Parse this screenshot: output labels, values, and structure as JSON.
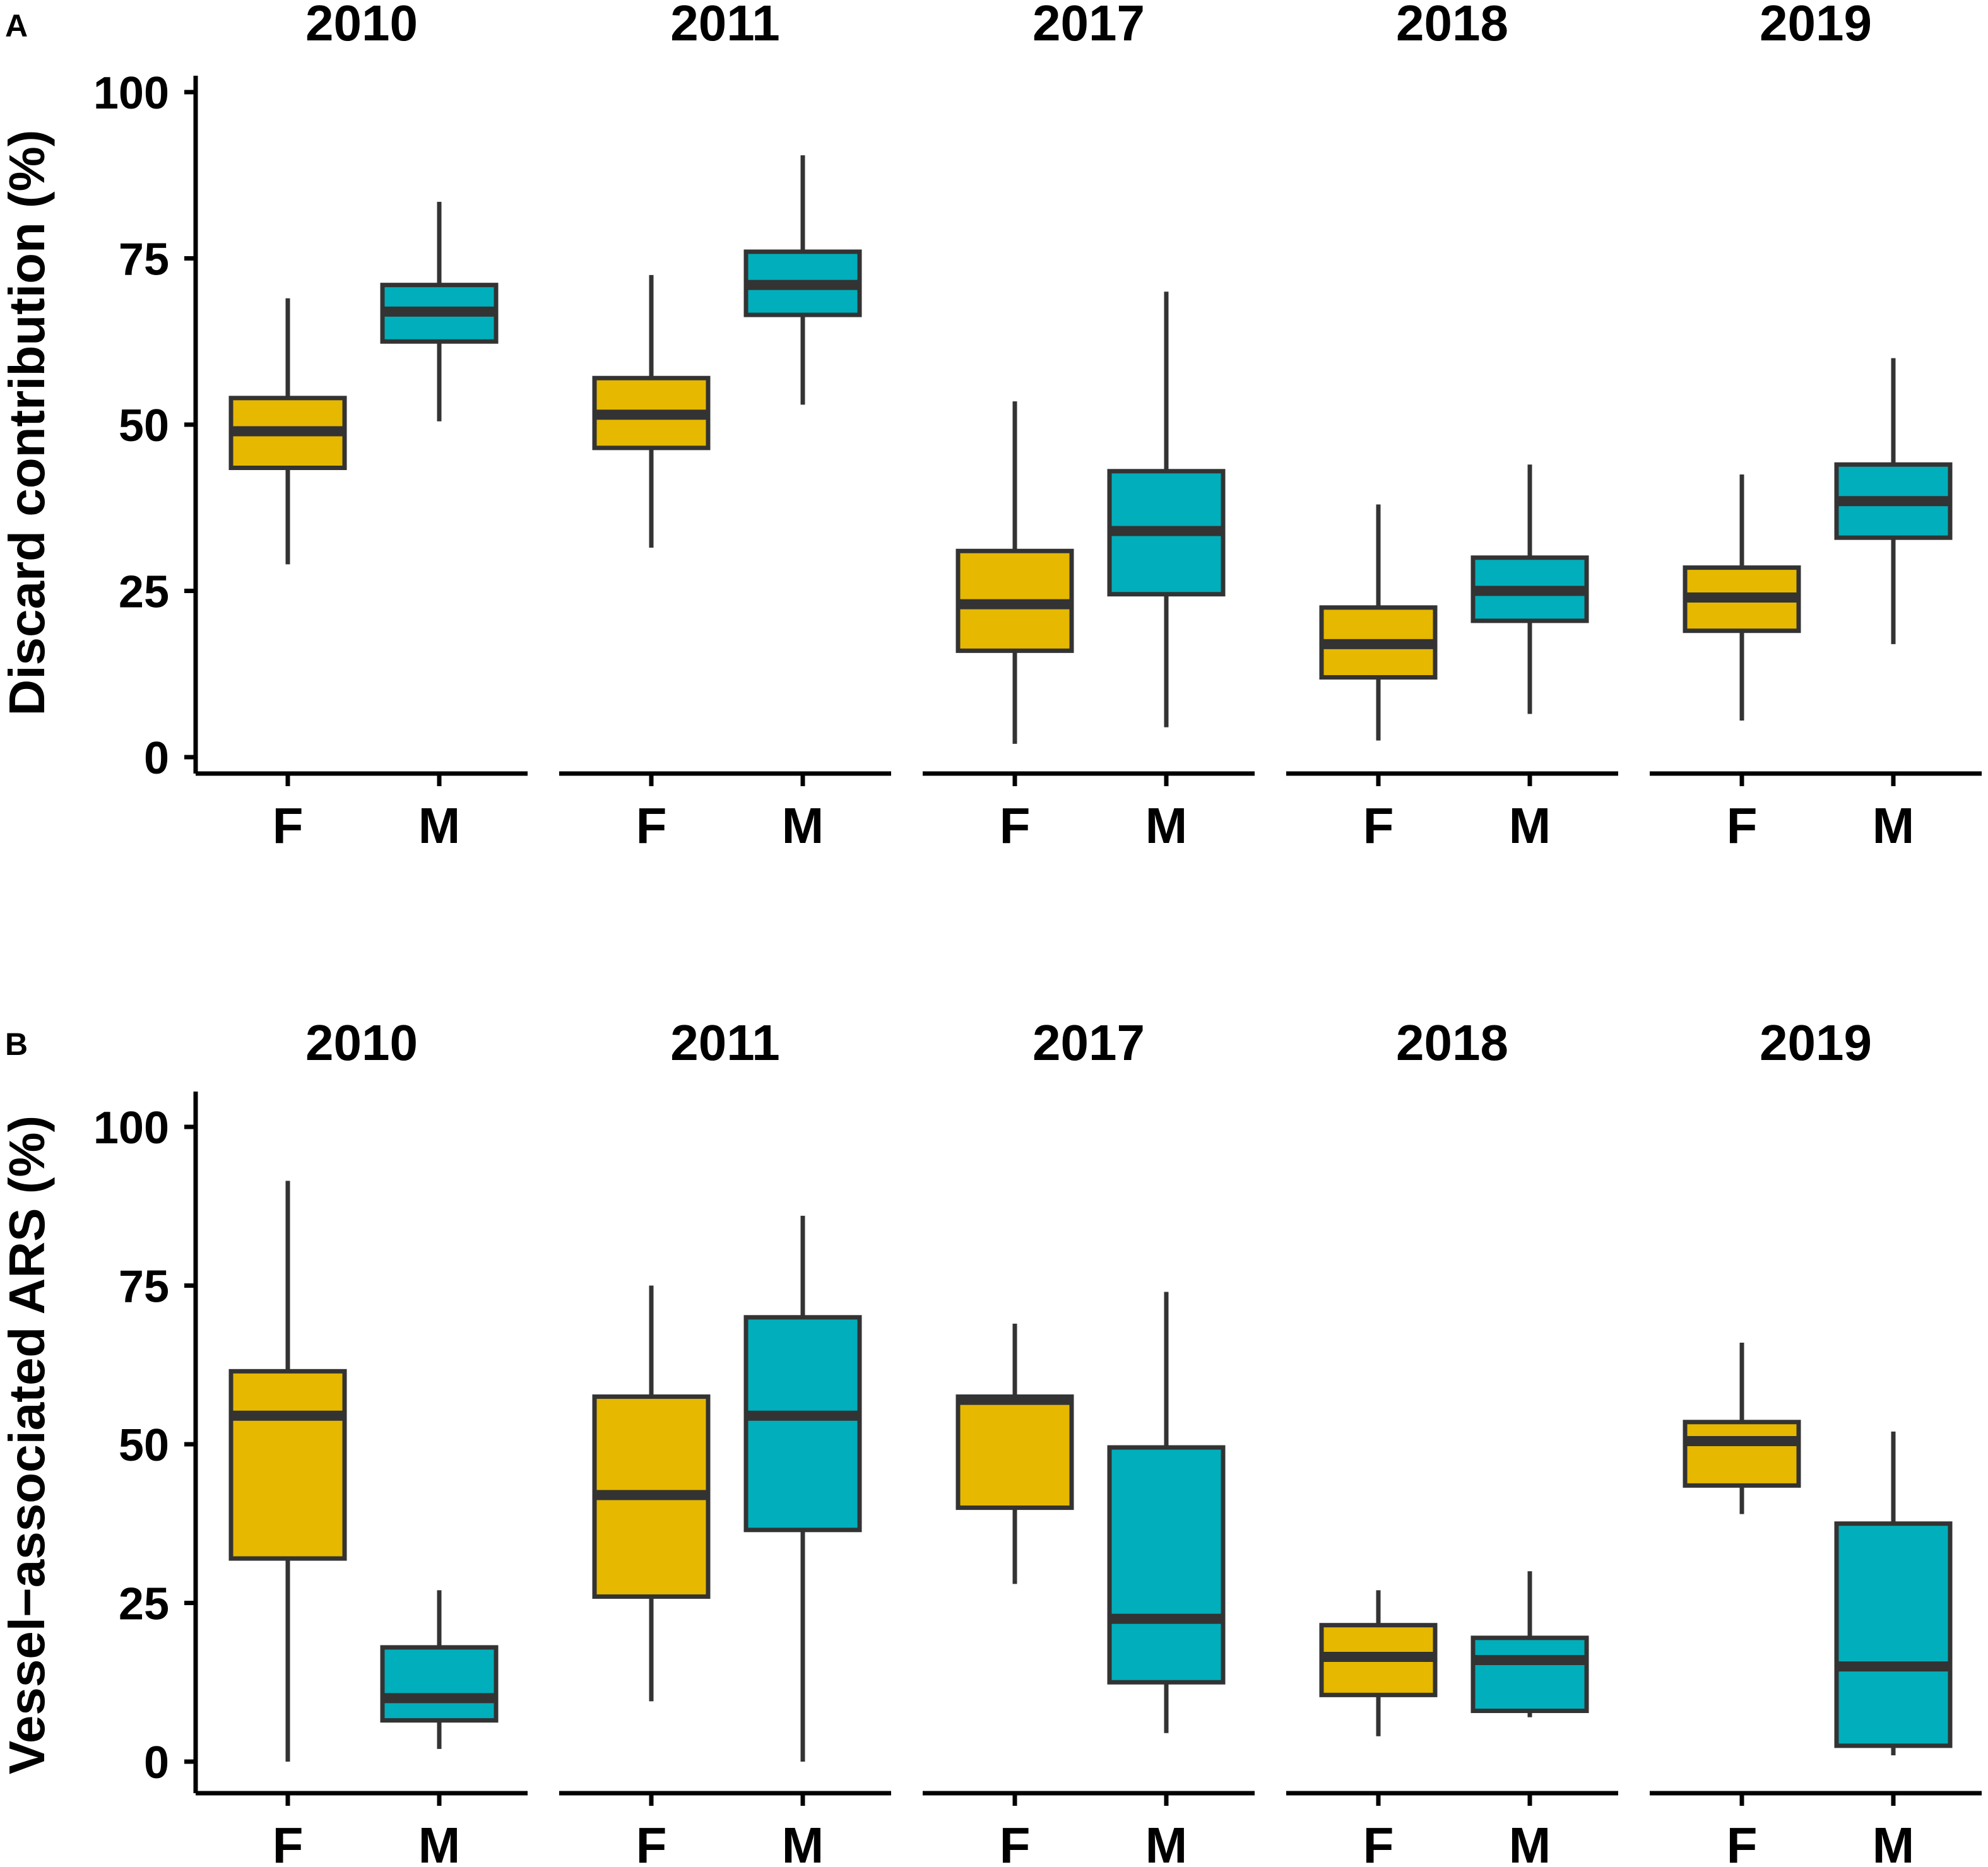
{
  "colors": {
    "F": "#E6B800",
    "M": "#00AFBB",
    "line": "#333333"
  },
  "chart_data": [
    {
      "panel": "A",
      "type": "boxplot",
      "ylabel": "Discard contribution (%)",
      "ylim": [
        0,
        100
      ],
      "yticks": [
        0,
        25,
        50,
        75,
        100
      ],
      "categories": [
        "F",
        "M"
      ],
      "facets": [
        {
          "title": "2010",
          "boxes": [
            {
              "group": "F",
              "min": 29,
              "q1": 43.5,
              "median": 49,
              "q3": 54,
              "max": 69
            },
            {
              "group": "M",
              "min": 50.5,
              "q1": 62.5,
              "median": 67,
              "q3": 71,
              "max": 83.5
            }
          ]
        },
        {
          "title": "2011",
          "boxes": [
            {
              "group": "F",
              "min": 31.5,
              "q1": 46.5,
              "median": 51.5,
              "q3": 57,
              "max": 72.5
            },
            {
              "group": "M",
              "min": 53,
              "q1": 66.5,
              "median": 71,
              "q3": 76,
              "max": 90.5
            }
          ]
        },
        {
          "title": "2017",
          "boxes": [
            {
              "group": "F",
              "min": 2,
              "q1": 16,
              "median": 23,
              "q3": 31,
              "max": 53.5
            },
            {
              "group": "M",
              "min": 4.5,
              "q1": 24.5,
              "median": 34,
              "q3": 43,
              "max": 70
            }
          ]
        },
        {
          "title": "2018",
          "boxes": [
            {
              "group": "F",
              "min": 2.5,
              "q1": 12,
              "median": 17,
              "q3": 22.5,
              "max": 38
            },
            {
              "group": "M",
              "min": 6.5,
              "q1": 20.5,
              "median": 25,
              "q3": 30,
              "max": 44
            }
          ]
        },
        {
          "title": "2019",
          "boxes": [
            {
              "group": "F",
              "min": 5.5,
              "q1": 19,
              "median": 24,
              "q3": 28.5,
              "max": 42.5
            },
            {
              "group": "M",
              "min": 17,
              "q1": 33,
              "median": 38.5,
              "q3": 44,
              "max": 60
            }
          ]
        }
      ]
    },
    {
      "panel": "B",
      "type": "boxplot",
      "ylabel": "Vessel−associated ARS (%)",
      "ylim": [
        0,
        100
      ],
      "yticks": [
        0,
        25,
        50,
        75,
        100
      ],
      "categories": [
        "F",
        "M"
      ],
      "facets": [
        {
          "title": "2010",
          "boxes": [
            {
              "group": "F",
              "min": 0,
              "q1": 32,
              "median": 54.5,
              "q3": 61.5,
              "max": 91.5
            },
            {
              "group": "M",
              "min": 2,
              "q1": 6.5,
              "median": 10,
              "q3": 18,
              "max": 27
            }
          ]
        },
        {
          "title": "2011",
          "boxes": [
            {
              "group": "F",
              "min": 9.5,
              "q1": 26,
              "median": 42,
              "q3": 57.5,
              "max": 75
            },
            {
              "group": "M",
              "min": 0,
              "q1": 36.5,
              "median": 54.5,
              "q3": 70,
              "max": 86
            }
          ]
        },
        {
          "title": "2017",
          "boxes": [
            {
              "group": "F",
              "min": 28,
              "q1": 40,
              "median": 57,
              "q3": 57.5,
              "max": 69
            },
            {
              "group": "M",
              "min": 4.5,
              "q1": 12.5,
              "median": 22.5,
              "q3": 49.5,
              "max": 74
            }
          ]
        },
        {
          "title": "2018",
          "boxes": [
            {
              "group": "F",
              "min": 4,
              "q1": 10.5,
              "median": 16.5,
              "q3": 21.5,
              "max": 27
            },
            {
              "group": "M",
              "min": 7,
              "q1": 8,
              "median": 16,
              "q3": 19.5,
              "max": 30
            }
          ]
        },
        {
          "title": "2019",
          "boxes": [
            {
              "group": "F",
              "min": 39,
              "q1": 43.5,
              "median": 50.5,
              "q3": 53.5,
              "max": 66
            },
            {
              "group": "M",
              "min": 1,
              "q1": 2.5,
              "median": 15,
              "q3": 37.5,
              "max": 52
            }
          ]
        }
      ]
    }
  ]
}
